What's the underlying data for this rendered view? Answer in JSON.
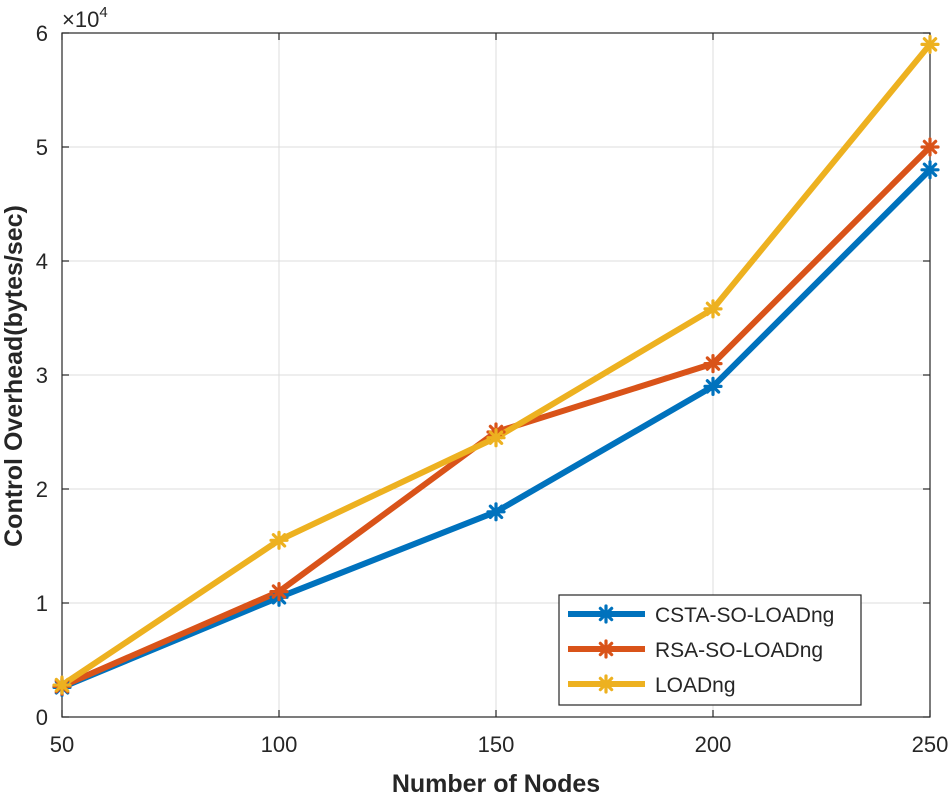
{
  "chart_data": {
    "type": "line",
    "title": "",
    "xlabel": "Number of Nodes",
    "ylabel": "Control Overhead(bytes/sec)",
    "x": [
      50,
      100,
      150,
      200,
      250
    ],
    "xlim": [
      50,
      250
    ],
    "ylim": [
      0,
      60000
    ],
    "x_ticks": [
      50,
      100,
      150,
      200,
      250
    ],
    "y_ticks": [
      0,
      10000,
      20000,
      30000,
      40000,
      50000,
      60000
    ],
    "y_tick_labels": [
      "0",
      "1",
      "2",
      "3",
      "4",
      "5",
      "6"
    ],
    "y_exponent_label": "×10",
    "y_exponent_power": "4",
    "grid": true,
    "legend_location": "bottom-right",
    "series": [
      {
        "name": "CSTA-SO-LOADng",
        "color": "#0072BD",
        "values": [
          2600,
          10500,
          18000,
          29000,
          48000
        ]
      },
      {
        "name": "RSA-SO-LOADng",
        "color": "#D95319",
        "values": [
          2700,
          11000,
          25000,
          31000,
          50000
        ]
      },
      {
        "name": "LOADng",
        "color": "#EDB120",
        "values": [
          2800,
          15500,
          24500,
          35800,
          59000
        ]
      }
    ]
  }
}
